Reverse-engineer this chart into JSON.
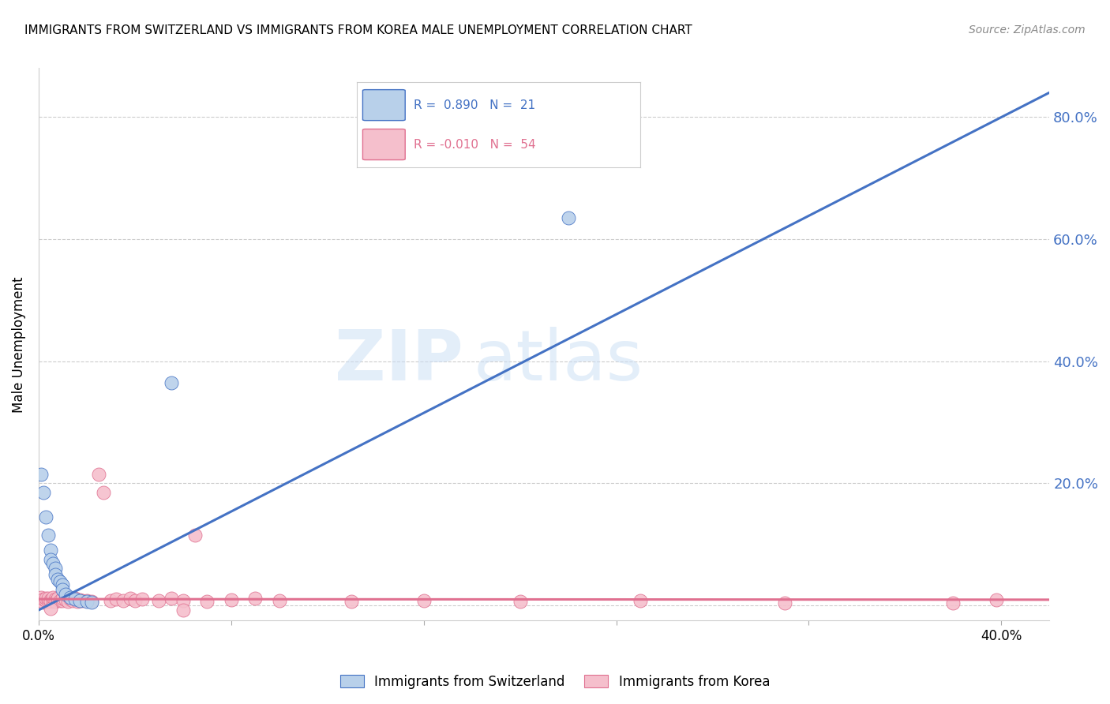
{
  "title": "IMMIGRANTS FROM SWITZERLAND VS IMMIGRANTS FROM KOREA MALE UNEMPLOYMENT CORRELATION CHART",
  "source": "Source: ZipAtlas.com",
  "ylabel": "Male Unemployment",
  "xlim": [
    0.0,
    0.42
  ],
  "ylim": [
    -0.025,
    0.88
  ],
  "yticks": [
    0.0,
    0.2,
    0.4,
    0.6,
    0.8
  ],
  "ytick_labels": [
    "",
    "20.0%",
    "40.0%",
    "60.0%",
    "80.0%"
  ],
  "xticks": [
    0.0,
    0.08,
    0.16,
    0.24,
    0.32,
    0.4
  ],
  "xtick_labels_show": [
    "0.0%",
    "",
    "",
    "",
    "",
    "40.0%"
  ],
  "grid_color": "#cccccc",
  "background_color": "#ffffff",
  "legend_r_swiss": "0.890",
  "legend_n_swiss": "21",
  "legend_r_korea": "-0.010",
  "legend_n_korea": "54",
  "swiss_color": "#b8d0ea",
  "swiss_line_color": "#4472c4",
  "korea_color": "#f5bfcc",
  "korea_line_color": "#e07090",
  "right_axis_color": "#4472c4",
  "watermark_left": "ZIP",
  "watermark_right": "atlas",
  "swiss_dots": [
    [
      0.001,
      0.215
    ],
    [
      0.002,
      0.185
    ],
    [
      0.003,
      0.145
    ],
    [
      0.004,
      0.115
    ],
    [
      0.005,
      0.09
    ],
    [
      0.005,
      0.075
    ],
    [
      0.006,
      0.068
    ],
    [
      0.007,
      0.06
    ],
    [
      0.007,
      0.05
    ],
    [
      0.008,
      0.043
    ],
    [
      0.009,
      0.038
    ],
    [
      0.01,
      0.033
    ],
    [
      0.01,
      0.025
    ],
    [
      0.011,
      0.018
    ],
    [
      0.013,
      0.013
    ],
    [
      0.015,
      0.01
    ],
    [
      0.017,
      0.008
    ],
    [
      0.02,
      0.006
    ],
    [
      0.022,
      0.005
    ],
    [
      0.055,
      0.365
    ],
    [
      0.22,
      0.635
    ]
  ],
  "korea_dots": [
    [
      0.001,
      0.008
    ],
    [
      0.001,
      0.013
    ],
    [
      0.002,
      0.005
    ],
    [
      0.002,
      0.01
    ],
    [
      0.003,
      0.008
    ],
    [
      0.003,
      0.012
    ],
    [
      0.004,
      0.007
    ],
    [
      0.004,
      0.011
    ],
    [
      0.005,
      0.009
    ],
    [
      0.005,
      0.006
    ],
    [
      0.006,
      0.008
    ],
    [
      0.006,
      0.013
    ],
    [
      0.007,
      0.01
    ],
    [
      0.007,
      0.006
    ],
    [
      0.008,
      0.009
    ],
    [
      0.008,
      0.012
    ],
    [
      0.009,
      0.008
    ],
    [
      0.01,
      0.007
    ],
    [
      0.01,
      0.011
    ],
    [
      0.011,
      0.009
    ],
    [
      0.012,
      0.006
    ],
    [
      0.013,
      0.01
    ],
    [
      0.014,
      0.008
    ],
    [
      0.015,
      0.012
    ],
    [
      0.016,
      0.006
    ],
    [
      0.017,
      0.009
    ],
    [
      0.018,
      0.007
    ],
    [
      0.02,
      0.008
    ],
    [
      0.022,
      0.006
    ],
    [
      0.025,
      0.215
    ],
    [
      0.027,
      0.185
    ],
    [
      0.03,
      0.008
    ],
    [
      0.032,
      0.01
    ],
    [
      0.035,
      0.007
    ],
    [
      0.038,
      0.012
    ],
    [
      0.04,
      0.008
    ],
    [
      0.043,
      0.01
    ],
    [
      0.05,
      0.008
    ],
    [
      0.055,
      0.011
    ],
    [
      0.06,
      0.008
    ],
    [
      0.065,
      0.115
    ],
    [
      0.07,
      0.006
    ],
    [
      0.08,
      0.009
    ],
    [
      0.09,
      0.012
    ],
    [
      0.1,
      0.008
    ],
    [
      0.13,
      0.006
    ],
    [
      0.16,
      0.008
    ],
    [
      0.2,
      0.006
    ],
    [
      0.25,
      0.007
    ],
    [
      0.31,
      0.004
    ],
    [
      0.38,
      0.004
    ],
    [
      0.398,
      0.009
    ],
    [
      0.005,
      -0.005
    ],
    [
      0.06,
      -0.008
    ]
  ],
  "swiss_trendline_x": [
    0.0,
    0.42
  ],
  "swiss_trendline_y": [
    -0.008,
    0.84
  ],
  "korea_trendline_x": [
    0.0,
    0.42
  ],
  "korea_trendline_y": [
    0.01,
    0.009
  ]
}
